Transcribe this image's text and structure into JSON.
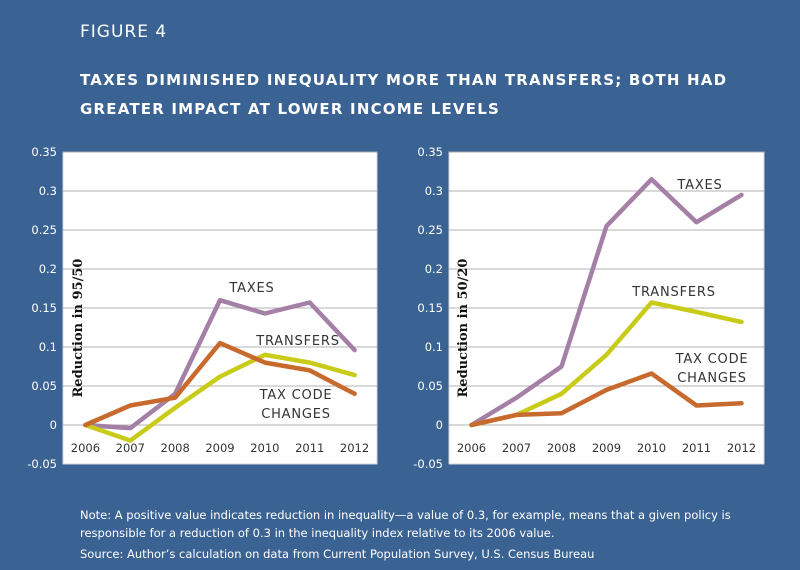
{
  "figure_label": "FIGURE 4",
  "title": "TAXES DIMINISHED INEQUALITY MORE THAN TRANSFERS; BOTH HAD GREATER IMPACT AT LOWER INCOME LEVELS",
  "note": "Note: A positive value indicates reduction in inequality—a value of 0.3, for example, means that a given policy is responsible for a reduction of 0.3 in the inequality index relative to its 2006 value.",
  "source": "Source: Author’s calculation on data from Current Population Survey, U.S. Census Bureau",
  "colors": {
    "background": "#3a6394",
    "taxes": "#a47fa6",
    "transfers": "#c8cc19",
    "tax_code_changes": "#c8692d"
  },
  "chart_data": [
    {
      "type": "line",
      "title": "",
      "ylabel": "Reduction in 95/50",
      "xlabel": "",
      "x": [
        "2006",
        "2007",
        "2008",
        "2009",
        "2010",
        "2011",
        "2012"
      ],
      "ylim": [
        -0.05,
        0.35
      ],
      "yticks": [
        "-0.05",
        "0",
        "0.05",
        "0.1",
        "0.15",
        "0.2",
        "0.25",
        "0.3",
        "0.35"
      ],
      "grid": "horizontal",
      "series": [
        {
          "name": "TAXES",
          "label_lines": [
            "TAXES"
          ],
          "color": "#a47fa6",
          "values": [
            0.0,
            -0.004,
            0.04,
            0.16,
            0.143,
            0.157,
            0.096
          ]
        },
        {
          "name": "TRANSFERS",
          "label_lines": [
            "TRANSFERS"
          ],
          "color": "#c8cc19",
          "values": [
            0.0,
            -0.02,
            0.022,
            0.062,
            0.09,
            0.08,
            0.064
          ]
        },
        {
          "name": "TAX CODE CHANGES",
          "label_lines": [
            "TAX CODE",
            "CHANGES"
          ],
          "color": "#c8692d",
          "values": [
            0.0,
            0.025,
            0.035,
            0.105,
            0.08,
            0.07,
            0.04
          ]
        }
      ]
    },
    {
      "type": "line",
      "title": "",
      "ylabel": "Reduction in 50/20",
      "xlabel": "",
      "x": [
        "2006",
        "2007",
        "2008",
        "2009",
        "2010",
        "2011",
        "2012"
      ],
      "ylim": [
        -0.05,
        0.35
      ],
      "yticks": [
        "-0.05",
        "0",
        "0.05",
        "0.1",
        "0.15",
        "0.2",
        "0.25",
        "0.3",
        "0.35"
      ],
      "grid": "horizontal",
      "series": [
        {
          "name": "TAXES",
          "label_lines": [
            "TAXES"
          ],
          "color": "#a47fa6",
          "values": [
            0.0,
            0.035,
            0.075,
            0.255,
            0.315,
            0.26,
            0.295
          ]
        },
        {
          "name": "TRANSFERS",
          "label_lines": [
            "TRANSFERS"
          ],
          "color": "#c8cc19",
          "values": [
            0.0,
            0.013,
            0.04,
            0.09,
            0.157,
            0.145,
            0.132
          ]
        },
        {
          "name": "TAX CODE CHANGES",
          "label_lines": [
            "TAX CODE",
            "CHANGES"
          ],
          "color": "#c8692d",
          "values": [
            0.0,
            0.013,
            0.015,
            0.045,
            0.066,
            0.025,
            0.028
          ]
        }
      ]
    }
  ]
}
